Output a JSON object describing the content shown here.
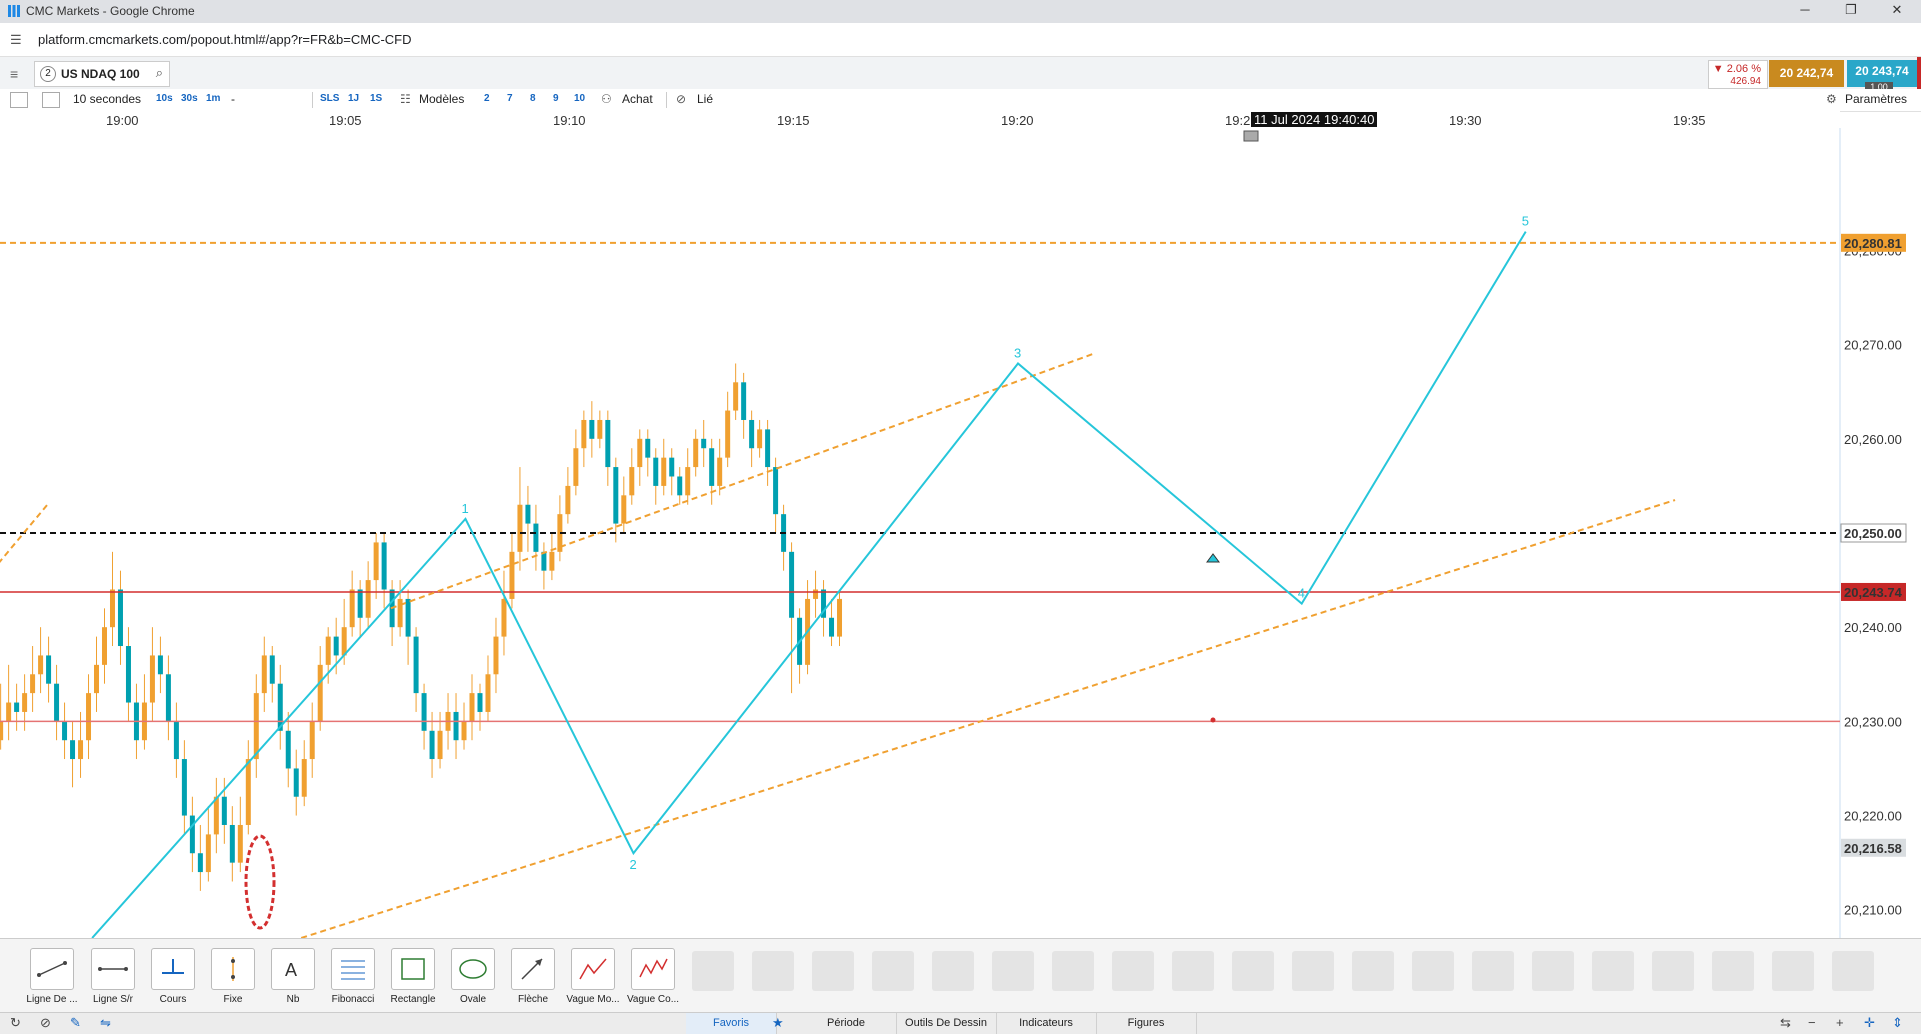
{
  "window": {
    "title": "CMC Markets - Google Chrome"
  },
  "address": {
    "url": "platform.cmcmarkets.com/popout.html#/app?r=FR&b=CMC-CFD"
  },
  "instrument": {
    "badge": "2",
    "name": "US NDAQ 100",
    "change_pct": "▼ 2.06 %",
    "change_pts": "426.94",
    "sell": "20 242,74",
    "buy": "20 243,74",
    "qty": "1.00"
  },
  "toolbar": {
    "interval": "10 secondes",
    "quick_intervals": [
      "10s",
      "30s",
      "1m"
    ],
    "dash": "-",
    "sls": "SLS",
    "onej": "1J",
    "ones": "1S",
    "modeles": "Modèles",
    "layouts": [
      "2",
      "7",
      "8",
      "9",
      "10"
    ],
    "achat": "Achat",
    "lie": "Lié",
    "parametres": "Paramètres"
  },
  "time_axis": {
    "ticks": [
      "19:00",
      "19:05",
      "19:10",
      "19:15",
      "19:20",
      "19:2",
      "19:30",
      "19:35"
    ],
    "cursor": "11 Jul 2024 19:40:40"
  },
  "chart_data": {
    "type": "candlestick",
    "instrument": "US NDAQ 100",
    "interval": "10 secondes",
    "ylim": [
      20207,
      20293
    ],
    "price_ticks": [
      "20,280.00",
      "20,270.00",
      "20,260.00",
      "20,250.00",
      "20,240.00",
      "20,230.00",
      "20,220.00",
      "20,210.00"
    ],
    "price_tick_values": [
      20280,
      20270,
      20260,
      20250,
      20240,
      20230,
      20220,
      20210
    ],
    "horizontal_lines": [
      {
        "label": "20,280.81",
        "value": 20280.81,
        "color": "#f0a030",
        "style": "dashed"
      },
      {
        "label": "20,250.00",
        "value": 20250.0,
        "color": "#111111",
        "style": "dashed"
      },
      {
        "label": "20,243.74",
        "value": 20243.74,
        "color": "#d32f2f",
        "style": "solid"
      },
      {
        "value": 20230.0,
        "color": "#e57373",
        "style": "solid"
      }
    ],
    "last_price_label": "20,216.58",
    "last_price": 20216.58,
    "elliott_wave": {
      "labels": [
        "1",
        "2",
        "3",
        "4",
        "5"
      ],
      "points": [
        {
          "time": "18:59:20",
          "price": 20207
        },
        {
          "time": "19:07:40",
          "price": 20251.5
        },
        {
          "time": "19:11:25",
          "price": 20216
        },
        {
          "time": "19:20:00",
          "price": 20268
        },
        {
          "time": "19:26:20",
          "price": 20242.5
        },
        {
          "time": "19:31:20",
          "price": 20282
        }
      ]
    },
    "channel_lines": [
      {
        "from": {
          "time": "19:06:00",
          "price": 20242
        },
        "to": {
          "time": "19:21:40",
          "price": 20269
        }
      },
      {
        "from": {
          "time": "19:04:00",
          "price": 20207
        },
        "to": {
          "time": "19:34:40",
          "price": 20253.5
        }
      },
      {
        "from": {
          "time": "18:56:40",
          "price": 20243.5
        },
        "to": {
          "time": "18:58:20",
          "price": 20253
        }
      }
    ],
    "candles": [
      [
        20233,
        20241,
        20226,
        20243
      ],
      [
        20229,
        20233,
        20226,
        20236
      ],
      [
        20228,
        20229,
        20224,
        20231
      ],
      [
        20230,
        20228,
        20227,
        20234
      ],
      [
        20232,
        20230,
        20228,
        20236
      ],
      [
        20231,
        20232,
        20229,
        20234
      ],
      [
        20233,
        20231,
        20229,
        20235
      ],
      [
        20235,
        20233,
        20231,
        20238
      ],
      [
        20237,
        20235,
        20233,
        20240
      ],
      [
        20234,
        20237,
        20232,
        20239
      ],
      [
        20230,
        20234,
        20228,
        20236
      ],
      [
        20228,
        20230,
        20226,
        20232
      ],
      [
        20226,
        20228,
        20223,
        20230
      ],
      [
        20228,
        20226,
        20224,
        20231
      ],
      [
        20233,
        20228,
        20226,
        20235
      ],
      [
        20236,
        20233,
        20231,
        20239
      ],
      [
        20240,
        20236,
        20234,
        20242
      ],
      [
        20244,
        20240,
        20238,
        20248
      ],
      [
        20238,
        20244,
        20236,
        20246
      ],
      [
        20232,
        20238,
        20230,
        20240
      ],
      [
        20228,
        20232,
        20226,
        20234
      ],
      [
        20232,
        20228,
        20227,
        20235
      ],
      [
        20237,
        20232,
        20230,
        20240
      ],
      [
        20235,
        20237,
        20233,
        20239
      ],
      [
        20230,
        20235,
        20228,
        20237
      ],
      [
        20226,
        20230,
        20224,
        20232
      ],
      [
        20220,
        20226,
        20218,
        20228
      ],
      [
        20216,
        20220,
        20214,
        20222
      ],
      [
        20214,
        20216,
        20212,
        20219
      ],
      [
        20218,
        20214,
        20213,
        20221
      ],
      [
        20222,
        20218,
        20216,
        20224
      ],
      [
        20219,
        20222,
        20217,
        20224
      ],
      [
        20215,
        20219,
        20213,
        20221
      ],
      [
        20219,
        20215,
        20214,
        20222
      ],
      [
        20226,
        20219,
        20218,
        20228
      ],
      [
        20233,
        20226,
        20224,
        20235
      ],
      [
        20237,
        20233,
        20231,
        20239
      ],
      [
        20234,
        20237,
        20232,
        20238
      ],
      [
        20229,
        20234,
        20227,
        20236
      ],
      [
        20225,
        20229,
        20223,
        20231
      ],
      [
        20222,
        20225,
        20220,
        20227
      ],
      [
        20226,
        20222,
        20221,
        20228
      ],
      [
        20230,
        20226,
        20224,
        20232
      ],
      [
        20236,
        20230,
        20229,
        20238
      ],
      [
        20239,
        20236,
        20234,
        20240
      ],
      [
        20237,
        20239,
        20235,
        20241
      ],
      [
        20240,
        20237,
        20236,
        20243
      ],
      [
        20244,
        20240,
        20239,
        20246
      ],
      [
        20241,
        20244,
        20239,
        20245
      ],
      [
        20245,
        20241,
        20240,
        20247
      ],
      [
        20249,
        20245,
        20243,
        20250
      ],
      [
        20244,
        20249,
        20242,
        20250
      ],
      [
        20240,
        20244,
        20238,
        20245
      ],
      [
        20243,
        20240,
        20239,
        20245
      ],
      [
        20239,
        20243,
        20236,
        20244
      ],
      [
        20233,
        20239,
        20231,
        20240
      ],
      [
        20229,
        20233,
        20227,
        20234
      ],
      [
        20226,
        20229,
        20224,
        20231
      ],
      [
        20229,
        20226,
        20225,
        20231
      ],
      [
        20231,
        20229,
        20227,
        20233
      ],
      [
        20228,
        20231,
        20226,
        20233
      ],
      [
        20230,
        20228,
        20227,
        20232
      ],
      [
        20233,
        20230,
        20228,
        20235
      ],
      [
        20231,
        20233,
        20229,
        20234
      ],
      [
        20235,
        20231,
        20230,
        20237
      ],
      [
        20239,
        20235,
        20233,
        20241
      ],
      [
        20243,
        20239,
        20237,
        20246
      ],
      [
        20248,
        20243,
        20242,
        20250
      ],
      [
        20253,
        20248,
        20246,
        20257
      ],
      [
        20251,
        20253,
        20248,
        20255
      ],
      [
        20248,
        20251,
        20246,
        20253
      ],
      [
        20246,
        20248,
        20244,
        20249
      ],
      [
        20248,
        20246,
        20245,
        20250
      ],
      [
        20252,
        20248,
        20247,
        20254
      ],
      [
        20255,
        20252,
        20251,
        20257
      ],
      [
        20259,
        20255,
        20254,
        20261
      ],
      [
        20262,
        20259,
        20257,
        20263
      ],
      [
        20260,
        20262,
        20258,
        20264
      ],
      [
        20262,
        20260,
        20259,
        20263
      ],
      [
        20257,
        20262,
        20255,
        20263
      ],
      [
        20251,
        20257,
        20249,
        20258
      ],
      [
        20254,
        20251,
        20250,
        20256
      ],
      [
        20257,
        20254,
        20253,
        20259
      ],
      [
        20260,
        20257,
        20255,
        20261
      ],
      [
        20258,
        20260,
        20256,
        20261
      ],
      [
        20255,
        20258,
        20253,
        20259
      ],
      [
        20258,
        20255,
        20254,
        20260
      ],
      [
        20256,
        20258,
        20254,
        20259
      ],
      [
        20254,
        20256,
        20253,
        20257
      ],
      [
        20257,
        20254,
        20253,
        20259
      ],
      [
        20260,
        20257,
        20256,
        20261
      ],
      [
        20259,
        20260,
        20257,
        20262
      ],
      [
        20255,
        20259,
        20253,
        20260
      ],
      [
        20258,
        20255,
        20254,
        20260
      ],
      [
        20263,
        20258,
        20257,
        20265
      ],
      [
        20266,
        20263,
        20262,
        20268
      ],
      [
        20262,
        20266,
        20260,
        20267
      ],
      [
        20259,
        20262,
        20257,
        20263
      ],
      [
        20261,
        20259,
        20258,
        20262
      ],
      [
        20257,
        20261,
        20255,
        20262
      ],
      [
        20252,
        20257,
        20250,
        20258
      ],
      [
        20248,
        20252,
        20246,
        20253
      ],
      [
        20241,
        20248,
        20233,
        20249
      ],
      [
        20236,
        20241,
        20234,
        20242
      ],
      [
        20243,
        20236,
        20235,
        20245
      ],
      [
        20244,
        20243,
        20241,
        20246
      ],
      [
        20241,
        20244,
        20239,
        20245
      ],
      [
        20239,
        20241,
        20238,
        20243
      ],
      [
        20243,
        20239,
        20238,
        20244
      ]
    ]
  },
  "drawing_tools": [
    "Ligne De ...",
    "Ligne S/r",
    "Cours",
    "Fixe",
    "Nb",
    "Fibonacci",
    "Rectangle",
    "Ovale",
    "Flèche",
    "Vague Mo...",
    "Vague Co..."
  ],
  "bottom_tabs": {
    "favoris": "Favoris",
    "periode": "Période",
    "outils": "Outils De Dessin",
    "indicateurs": "Indicateurs",
    "figures": "Figures"
  },
  "colors": {
    "wave": "#26c6da",
    "candle": "#f0a030",
    "candle_up": "#00a0b0",
    "resistance": "#f0a030",
    "support_red": "#d32f2f",
    "sell": "#c98a1f",
    "buy": "#2aa7c9"
  }
}
